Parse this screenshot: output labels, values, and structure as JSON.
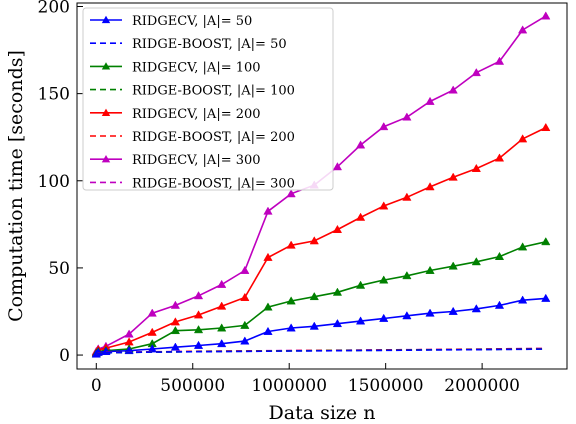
{
  "chart_data": {
    "type": "line",
    "xlabel": "Data size n",
    "ylabel": "Computation time [seconds]",
    "xlim": [
      -100000,
      2440000
    ],
    "ylim": [
      -8,
      202
    ],
    "xticks": [
      0,
      500000,
      1000000,
      1500000,
      2000000
    ],
    "xtick_labels": [
      "0",
      "500000",
      "1000000",
      "1500000",
      "2000000"
    ],
    "yticks": [
      0,
      50,
      100,
      150,
      200
    ],
    "ytick_labels": [
      "0",
      "50",
      "100",
      "150",
      "200"
    ],
    "grid": false,
    "legend_position": "top-left",
    "x": [
      0,
      10000,
      50000,
      170000,
      290000,
      410000,
      530000,
      650000,
      770000,
      890000,
      1010000,
      1130000,
      1250000,
      1370000,
      1490000,
      1610000,
      1730000,
      1850000,
      1970000,
      2090000,
      2210000,
      2330000
    ],
    "series": [
      {
        "name": "RIDGECV, |A|= 50",
        "color": "#0000ff",
        "dash": "solid",
        "marker": "triangle",
        "values": [
          0.5,
          1.5,
          2.0,
          2.5,
          3.5,
          4.5,
          5.5,
          6.5,
          8.0,
          13.5,
          15.5,
          16.5,
          18.0,
          19.5,
          21.0,
          22.5,
          24.0,
          25.0,
          26.5,
          28.5,
          31.5,
          32.5
        ]
      },
      {
        "name": "RIDGE-BOOST, |A|= 50",
        "color": "#0000ff",
        "dash": "dashed",
        "marker": "none",
        "values": [
          0.5,
          1.0,
          1.3,
          1.5,
          1.7,
          1.8,
          1.9,
          2.0,
          2.1,
          2.2,
          2.3,
          2.4,
          2.5,
          2.6,
          2.7,
          2.8,
          2.9,
          3.0,
          3.1,
          3.2,
          3.3,
          3.4
        ]
      },
      {
        "name": "RIDGECV, |A|= 100",
        "color": "#008000",
        "dash": "solid",
        "marker": "triangle",
        "values": [
          1.0,
          2.0,
          2.5,
          3.5,
          6.5,
          14.0,
          14.5,
          15.5,
          17.0,
          27.5,
          31.0,
          33.5,
          36.0,
          40.0,
          43.0,
          45.5,
          48.5,
          51.0,
          53.5,
          56.5,
          62.0,
          65.0
        ]
      },
      {
        "name": "RIDGE-BOOST, |A|= 100",
        "color": "#008000",
        "dash": "dashed",
        "marker": "none",
        "values": [
          0.5,
          1.0,
          1.3,
          1.5,
          1.7,
          1.8,
          2.0,
          2.1,
          2.2,
          2.3,
          2.4,
          2.5,
          2.6,
          2.7,
          2.8,
          2.9,
          3.0,
          3.1,
          3.2,
          3.3,
          3.4,
          3.5
        ]
      },
      {
        "name": "RIDGECV, |A|= 200",
        "color": "#ff0000",
        "dash": "solid",
        "marker": "triangle",
        "values": [
          1.5,
          3.0,
          4.0,
          7.5,
          13.0,
          19.0,
          23.0,
          28.0,
          33.0,
          56.0,
          63.0,
          65.5,
          72.0,
          79.0,
          85.5,
          90.5,
          96.5,
          102.0,
          107.0,
          113.0,
          124.0,
          130.5
        ]
      },
      {
        "name": "RIDGE-BOOST, |A|= 200",
        "color": "#ff0000",
        "dash": "dashed",
        "marker": "none",
        "values": [
          0.5,
          1.1,
          1.4,
          1.6,
          1.8,
          1.9,
          2.1,
          2.2,
          2.3,
          2.4,
          2.5,
          2.6,
          2.7,
          2.8,
          2.9,
          3.0,
          3.1,
          3.2,
          3.3,
          3.4,
          3.6,
          3.7
        ]
      },
      {
        "name": "RIDGECV, |A|= 300",
        "color": "#bf00bf",
        "dash": "solid",
        "marker": "triangle",
        "values": [
          2.0,
          3.5,
          5.0,
          12.0,
          24.0,
          28.5,
          34.0,
          40.5,
          48.5,
          82.5,
          92.5,
          97.5,
          108.0,
          120.5,
          131.0,
          136.5,
          145.5,
          152.0,
          162.0,
          168.5,
          186.5,
          194.5
        ]
      },
      {
        "name": "RIDGE-BOOST, |A|= 300",
        "color": "#bf00bf",
        "dash": "dashed",
        "marker": "none",
        "values": [
          0.5,
          1.1,
          1.4,
          1.7,
          1.9,
          2.0,
          2.2,
          2.3,
          2.4,
          2.5,
          2.6,
          2.7,
          2.8,
          2.9,
          3.0,
          3.1,
          3.2,
          3.3,
          3.4,
          3.6,
          3.7,
          3.8
        ]
      }
    ]
  }
}
